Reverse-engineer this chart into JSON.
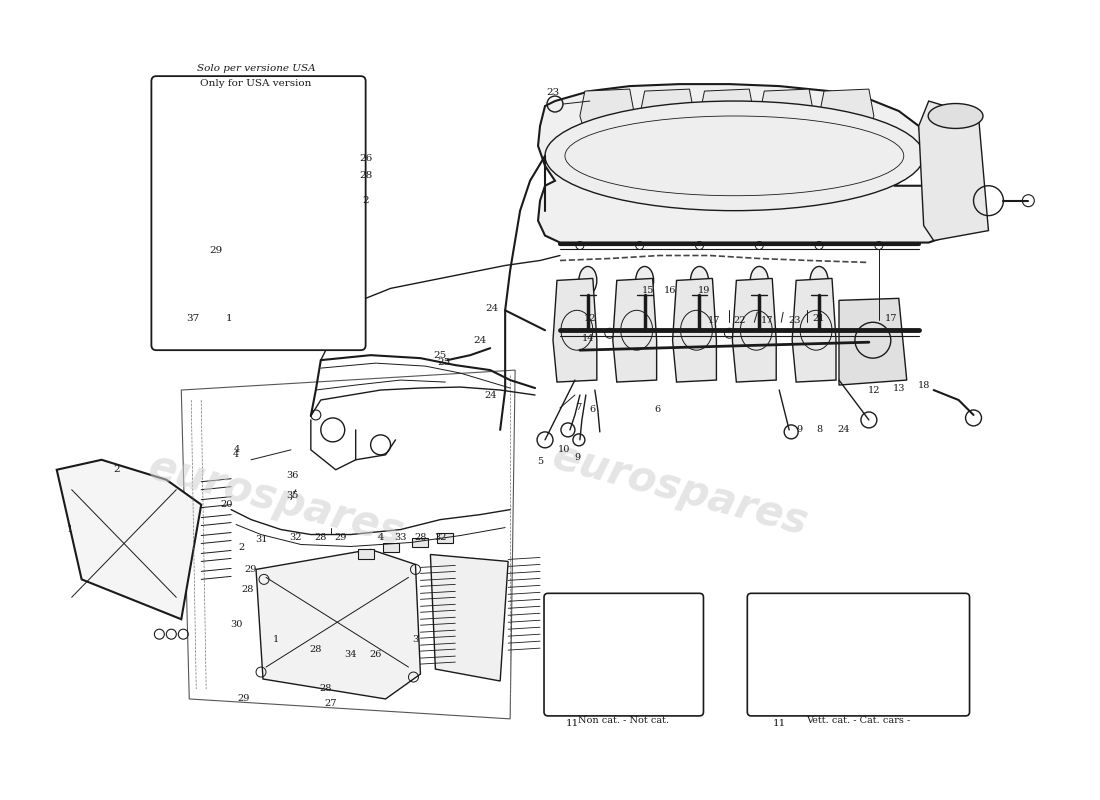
{
  "background_color": "#ffffff",
  "line_color": "#1a1a1a",
  "watermark_text": "eurospares",
  "watermark_color": "#d0d0d0",
  "fig_width": 11.0,
  "fig_height": 8.0,
  "dpi": 100,
  "usa_box_label_it": "Solo per versione USA",
  "usa_box_label_en": "Only for USA version",
  "non_cat_label": "Non cat. - Not cat.",
  "cat_label": "Vett. cat. - Cat. cars -"
}
